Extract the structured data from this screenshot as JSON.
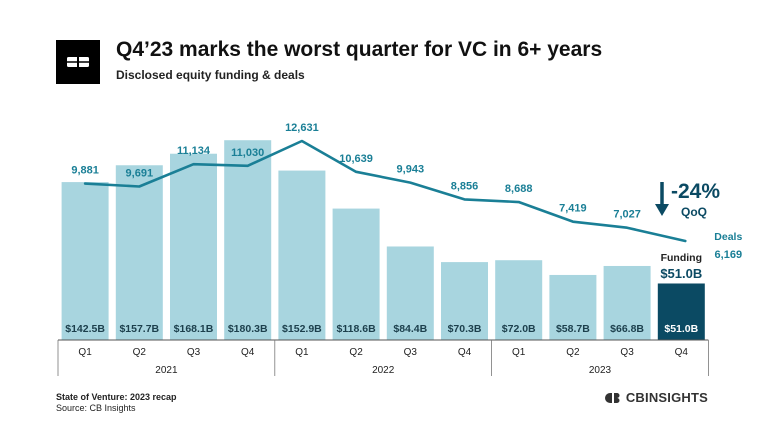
{
  "header": {
    "title": "Q4’23 marks the worst quarter for VC in 6+ years",
    "subtitle": "Disclosed equity funding & deals"
  },
  "colors": {
    "bar": "#a8d5df",
    "bar_highlight": "#0b4a63",
    "line": "#1a7f96",
    "label_dark": "#1c3f4c",
    "deals_label": "#1a7f96",
    "text": "#111111",
    "axis": "#555555"
  },
  "chart_data": {
    "type": "bar",
    "title": "Q4’23 marks the worst quarter for VC in 6+ years",
    "subtitle": "Disclosed equity funding & deals",
    "categories": [
      "Q1",
      "Q2",
      "Q3",
      "Q4",
      "Q1",
      "Q2",
      "Q3",
      "Q4",
      "Q1",
      "Q2",
      "Q3",
      "Q4"
    ],
    "groups": [
      {
        "label": "2021",
        "start": 0,
        "end": 3
      },
      {
        "label": "2022",
        "start": 4,
        "end": 7
      },
      {
        "label": "2023",
        "start": 8,
        "end": 11
      }
    ],
    "series": [
      {
        "name": "Funding",
        "unit": "$B",
        "values": [
          142.5,
          157.7,
          168.1,
          180.3,
          152.9,
          118.6,
          84.4,
          70.3,
          72.0,
          58.7,
          66.8,
          51.0
        ],
        "labels": [
          "$142.5B",
          "$157.7B",
          "$168.1B",
          "$180.3B",
          "$152.9B",
          "$118.6B",
          "$84.4B",
          "$70.3B",
          "$72.0B",
          "$58.7B",
          "$66.8B",
          "$51.0B"
        ],
        "ylim": [
          0,
          185
        ]
      },
      {
        "name": "Deals",
        "type": "line",
        "values": [
          9881,
          9691,
          11134,
          11030,
          12631,
          10639,
          9943,
          8856,
          8688,
          7419,
          7027,
          6169
        ],
        "labels": [
          "9,881",
          "9,691",
          "11,134",
          "11,030",
          "12,631",
          "10,639",
          "9,943",
          "8,856",
          "8,688",
          "7,419",
          "7,027",
          "6,169"
        ],
        "ylim": [
          3650,
          12950
        ]
      }
    ],
    "annotations": {
      "change_value": "-24%",
      "change_period": "QoQ",
      "funding_label": "Funding",
      "funding_value": "$51.0B",
      "deals_label": "Deals",
      "deals_value": "6,169"
    },
    "xlabel": "",
    "ylabel": ""
  },
  "footer": {
    "report": "State of Venture: 2023 recap",
    "source": "Source: CB Insights",
    "brand": "CBINSIGHTS"
  }
}
